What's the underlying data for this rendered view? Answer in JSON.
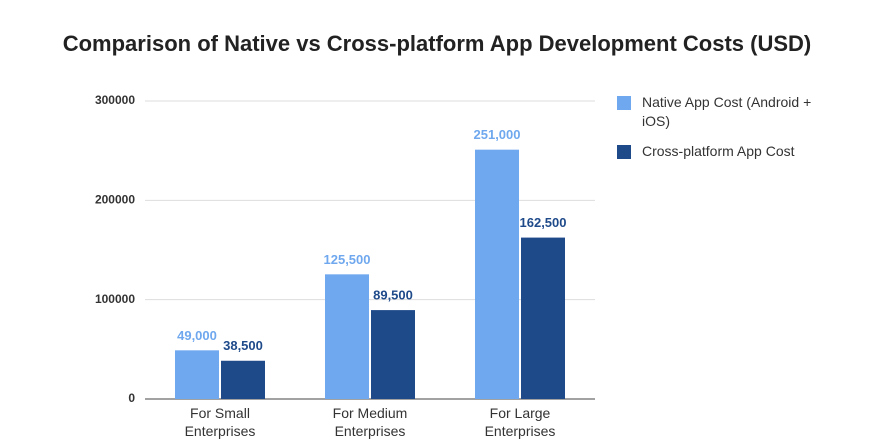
{
  "chart_data": {
    "type": "bar",
    "title": "Comparison of Native vs Cross-platform App Development Costs (USD)",
    "categories": [
      "For Small Enterprises",
      "For Medium Enterprises",
      "For Large Enterprises"
    ],
    "series": [
      {
        "name": "Native App Cost (Android + iOS)",
        "color": "#6fa8ee",
        "values": [
          49000,
          125500,
          251000
        ],
        "value_labels": [
          "49,000",
          "125,500",
          "251,000"
        ]
      },
      {
        "name": "Cross-platform App Cost",
        "color": "#1f4a8a",
        "values": [
          38500,
          89500,
          162500
        ],
        "value_labels": [
          "38,500",
          "89,500",
          "162,500"
        ]
      }
    ],
    "ylim": [
      0,
      300000
    ],
    "yticks": [
      0,
      100000,
      200000,
      300000
    ],
    "grid": true,
    "legend": "right"
  }
}
